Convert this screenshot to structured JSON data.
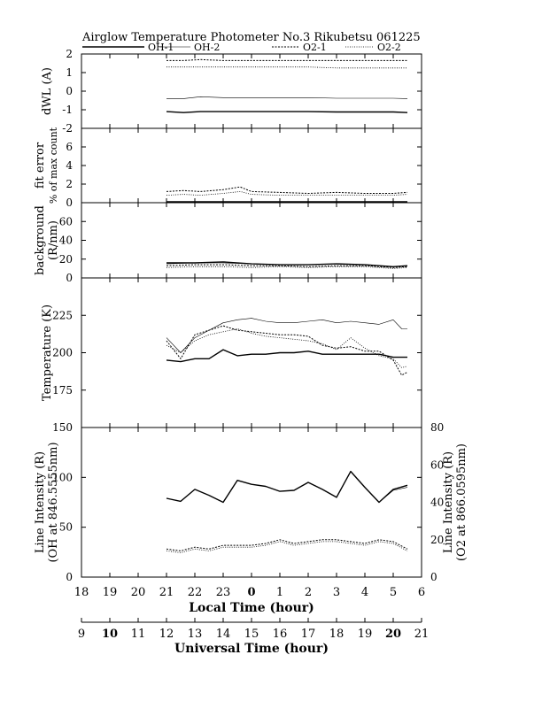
{
  "title": "Airglow Temperature Photometer No.3   Rikubetsu   061225",
  "legend": [
    {
      "name": "OH-1",
      "dash": "solid",
      "width": 1.4
    },
    {
      "name": "OH-2",
      "dash": "solid",
      "width": 0.6
    },
    {
      "name": "O2-1",
      "dash": "2,1.5",
      "width": 1.0
    },
    {
      "name": "O2-2",
      "dash": "1,1.5",
      "width": 0.8
    }
  ],
  "x_axis": {
    "local_label": "Local Time (hour)",
    "local_ticks": [
      "18",
      "19",
      "20",
      "21",
      "22",
      "23",
      "0",
      "1",
      "2",
      "3",
      "4",
      "5",
      "6"
    ],
    "ut_label": "Universal Time (hour)",
    "ut_ticks": [
      "9",
      "10",
      "11",
      "12",
      "13",
      "14",
      "15",
      "16",
      "17",
      "18",
      "19",
      "20",
      "21"
    ],
    "range_ut": [
      9,
      21
    ]
  },
  "chart_data": [
    {
      "type": "line",
      "panel": "dwl",
      "ylabel": "dWL (A)",
      "ylim": [
        -2,
        2
      ],
      "yticks": [
        "2",
        "1",
        "0",
        "-1",
        "-2"
      ],
      "x": [
        12.0,
        12.6,
        13.2,
        14.0,
        15.0,
        16.0,
        17.0,
        18.0,
        19.0,
        20.0,
        20.5
      ],
      "series": [
        {
          "name": "OH-1",
          "values": [
            -1.1,
            -1.15,
            -1.1,
            -1.1,
            -1.1,
            -1.1,
            -1.1,
            -1.12,
            -1.12,
            -1.12,
            -1.15
          ]
        },
        {
          "name": "OH-2",
          "values": [
            -0.4,
            -0.4,
            -0.3,
            -0.35,
            -0.35,
            -0.35,
            -0.35,
            -0.38,
            -0.38,
            -0.38,
            -0.4
          ]
        },
        {
          "name": "O2-1",
          "values": [
            1.65,
            1.65,
            1.7,
            1.65,
            1.65,
            1.65,
            1.65,
            1.65,
            1.65,
            1.65,
            1.65
          ]
        },
        {
          "name": "O2-2",
          "values": [
            1.3,
            1.3,
            1.3,
            1.3,
            1.3,
            1.3,
            1.3,
            1.25,
            1.25,
            1.25,
            1.25
          ]
        }
      ]
    },
    {
      "type": "line",
      "panel": "fit",
      "ylabel": "fit error",
      "ylabel2": "% of max count",
      "ylim": [
        0,
        8
      ],
      "yticks": [
        "6",
        "4",
        "2",
        "0"
      ],
      "x": [
        12.0,
        12.6,
        13.2,
        14.0,
        14.6,
        15.0,
        16.0,
        17.0,
        18.0,
        19.0,
        20.0,
        20.5
      ],
      "series": [
        {
          "name": "OH-1",
          "values": [
            0.05,
            0.05,
            0.05,
            0.05,
            0.05,
            0.05,
            0.05,
            0.05,
            0.05,
            0.05,
            0.05,
            0.05
          ]
        },
        {
          "name": "OH-2",
          "values": [
            0.15,
            0.15,
            0.15,
            0.15,
            0.15,
            0.15,
            0.15,
            0.15,
            0.15,
            0.15,
            0.15,
            0.15
          ]
        },
        {
          "name": "O2-1",
          "values": [
            1.2,
            1.3,
            1.2,
            1.4,
            1.7,
            1.2,
            1.1,
            1.0,
            1.1,
            1.0,
            1.0,
            1.1
          ]
        },
        {
          "name": "O2-2",
          "values": [
            0.8,
            0.9,
            0.8,
            1.0,
            1.2,
            0.9,
            0.8,
            0.8,
            0.8,
            0.8,
            0.8,
            0.9
          ]
        }
      ]
    },
    {
      "type": "line",
      "panel": "bg",
      "ylabel": "background",
      "ylabel2": "(R/nm)",
      "ylim": [
        0,
        80
      ],
      "yticks": [
        "60",
        "40",
        "20",
        "0"
      ],
      "x": [
        12.0,
        13.0,
        14.0,
        15.0,
        16.0,
        17.0,
        18.0,
        19.0,
        20.0,
        20.5
      ],
      "series": [
        {
          "name": "OH-1",
          "values": [
            16,
            16,
            17,
            15,
            14,
            14,
            15,
            14,
            12,
            13
          ]
        },
        {
          "name": "OH-2",
          "values": [
            15,
            16,
            16,
            15,
            14,
            14,
            15,
            14,
            12,
            13
          ]
        },
        {
          "name": "O2-1",
          "values": [
            13,
            14,
            14,
            13,
            13,
            12,
            13,
            13,
            11,
            12
          ]
        },
        {
          "name": "O2-2",
          "values": [
            11,
            12,
            12,
            11,
            12,
            11,
            12,
            12,
            10,
            11
          ]
        }
      ]
    },
    {
      "type": "line",
      "panel": "temp",
      "ylabel": "Temperature (K)",
      "ylim": [
        150,
        250
      ],
      "yticks": [
        "225",
        "200",
        "175"
      ],
      "x": [
        12.0,
        12.5,
        13.0,
        13.5,
        14.0,
        14.5,
        15.0,
        15.5,
        16.0,
        16.5,
        17.0,
        17.5,
        18.0,
        18.5,
        19.0,
        19.5,
        20.0,
        20.3,
        20.5
      ],
      "series": [
        {
          "name": "OH-1",
          "values": [
            195,
            194,
            196,
            196,
            202,
            198,
            199,
            199,
            200,
            200,
            201,
            199,
            199,
            199,
            199,
            199,
            197,
            197,
            197
          ]
        },
        {
          "name": "OH-2",
          "values": [
            210,
            200,
            210,
            215,
            220,
            222,
            223,
            221,
            220,
            220,
            221,
            222,
            220,
            221,
            220,
            219,
            222,
            216,
            216
          ]
        },
        {
          "name": "O2-1",
          "values": [
            208,
            196,
            212,
            215,
            218,
            215,
            214,
            213,
            212,
            212,
            211,
            205,
            203,
            204,
            201,
            201,
            195,
            185,
            187
          ]
        },
        {
          "name": "O2-2",
          "values": [
            205,
            200,
            208,
            212,
            214,
            216,
            213,
            211,
            210,
            209,
            208,
            206,
            202,
            210,
            203,
            198,
            196,
            190,
            191
          ]
        }
      ]
    },
    {
      "type": "line",
      "panel": "intensity",
      "ylabel": "Line Intensity (R)",
      "ylabel2": "(OH at 846.5555nm)",
      "ylim": [
        0,
        150
      ],
      "yticks": [
        "150",
        "100",
        "50",
        "0"
      ],
      "y2label": "Line Intensity (R)",
      "y2label2": "(O2 at 866.0595nm)",
      "y2lim": [
        0,
        80
      ],
      "y2ticks": [
        "80",
        "60",
        "40",
        "20",
        "0"
      ],
      "x": [
        12.0,
        12.5,
        13.0,
        13.5,
        14.0,
        14.5,
        15.0,
        15.5,
        16.0,
        16.5,
        17.0,
        17.5,
        18.0,
        18.5,
        19.0,
        19.5,
        20.0,
        20.5
      ],
      "series": [
        {
          "name": "OH-1",
          "axis": "left",
          "values": [
            79,
            76,
            88,
            82,
            75,
            97,
            93,
            91,
            86,
            87,
            95,
            88,
            80,
            106,
            90,
            75,
            88,
            92
          ]
        },
        {
          "name": "OH-2",
          "axis": "left",
          "values": [
            79,
            76,
            88,
            82,
            75,
            97,
            93,
            91,
            86,
            87,
            95,
            88,
            80,
            106,
            90,
            75,
            87,
            90
          ]
        },
        {
          "name": "O2-1",
          "axis": "right",
          "values": [
            15,
            14,
            16,
            15,
            17,
            17,
            17,
            18,
            20,
            18,
            19,
            20,
            20,
            19,
            18,
            20,
            19,
            15
          ]
        },
        {
          "name": "O2-2",
          "axis": "right",
          "values": [
            14,
            13,
            15,
            14,
            16,
            16,
            16,
            17,
            19,
            17,
            18,
            19,
            19,
            18,
            17,
            19,
            18,
            14
          ]
        }
      ]
    }
  ]
}
